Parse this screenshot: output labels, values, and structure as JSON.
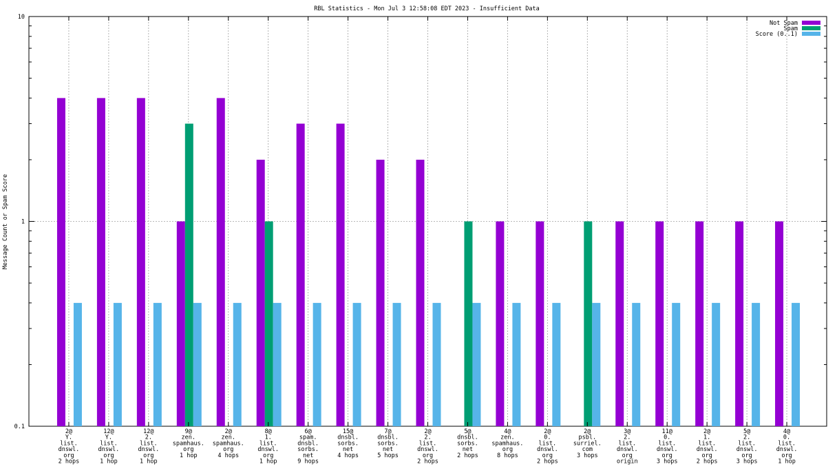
{
  "chart_data": {
    "type": "bar",
    "title": "RBL Statistics - Mon Jul  3 12:58:08 EDT 2023 - Insufficient Data",
    "ylabel": "Message Count or Spam Score",
    "xlabel": "",
    "yscale": "log",
    "ylim": [
      0.1,
      10
    ],
    "yticks": [
      "0.1",
      "1",
      "10"
    ],
    "grid": true,
    "legend_position": "top-right",
    "categories": [
      [
        "2@",
        "Y.",
        "list.",
        "dnswl.",
        "org",
        "2 hops"
      ],
      [
        "12@",
        "Y.",
        "list.",
        "dnswl.",
        "org",
        "1 hop"
      ],
      [
        "12@",
        "2.",
        "list.",
        "dnswl.",
        "org",
        "1 hop"
      ],
      [
        "9@",
        "zen.",
        "spamhaus.",
        "org",
        "1 hop"
      ],
      [
        "2@",
        "zen.",
        "spamhaus.",
        "org",
        "4 hops"
      ],
      [
        "8@",
        "1.",
        "list.",
        "dnswl.",
        "org",
        "1 hop"
      ],
      [
        "6@",
        "spam.",
        "dnsbl.",
        "sorbs.",
        "net",
        "9 hops"
      ],
      [
        "15@",
        "dnsbl.",
        "sorbs.",
        "net",
        "4 hops"
      ],
      [
        "7@",
        "dnsbl.",
        "sorbs.",
        "net",
        "5 hops"
      ],
      [
        "2@",
        "2.",
        "list.",
        "dnswl.",
        "org",
        "2 hops"
      ],
      [
        "5@",
        "dnsbl.",
        "sorbs.",
        "net",
        "2 hops"
      ],
      [
        "4@",
        "zen.",
        "spamhaus.",
        "org",
        "8 hops"
      ],
      [
        "2@",
        "0.",
        "list.",
        "dnswl.",
        "org",
        "2 hops"
      ],
      [
        "2@",
        "psbl.",
        "surriel.",
        "com",
        "3 hops"
      ],
      [
        "3@",
        "2.",
        "list.",
        "dnswl.",
        "org",
        "origin"
      ],
      [
        "11@",
        "0.",
        "list.",
        "dnswl.",
        "org",
        "3 hops"
      ],
      [
        "2@",
        "1.",
        "list.",
        "dnswl.",
        "org",
        "2 hops"
      ],
      [
        "5@",
        "2.",
        "list.",
        "dnswl.",
        "org",
        "3 hops"
      ],
      [
        "4@",
        "0.",
        "list.",
        "dnswl.",
        "org",
        "1 hop"
      ]
    ],
    "series": [
      {
        "name": "Not Spam",
        "color": "#9400d3",
        "values": [
          4,
          4,
          4,
          1,
          4,
          2,
          3,
          3,
          2,
          2,
          0,
          1,
          1,
          0,
          1,
          1,
          1,
          1,
          1
        ]
      },
      {
        "name": "Spam",
        "color": "#009e73",
        "values": [
          0,
          0,
          0,
          3,
          0,
          1,
          0,
          0,
          0,
          0,
          1,
          0,
          0,
          1,
          0,
          0,
          0,
          0,
          0
        ]
      },
      {
        "name": "Score (0..1)",
        "color": "#56b4e9",
        "values": [
          0.4,
          0.4,
          0.4,
          0.4,
          0.4,
          0.4,
          0.4,
          0.4,
          0.4,
          0.4,
          0.4,
          0.4,
          0.4,
          0.4,
          0.4,
          0.4,
          0.4,
          0.4,
          0.4
        ]
      }
    ]
  }
}
